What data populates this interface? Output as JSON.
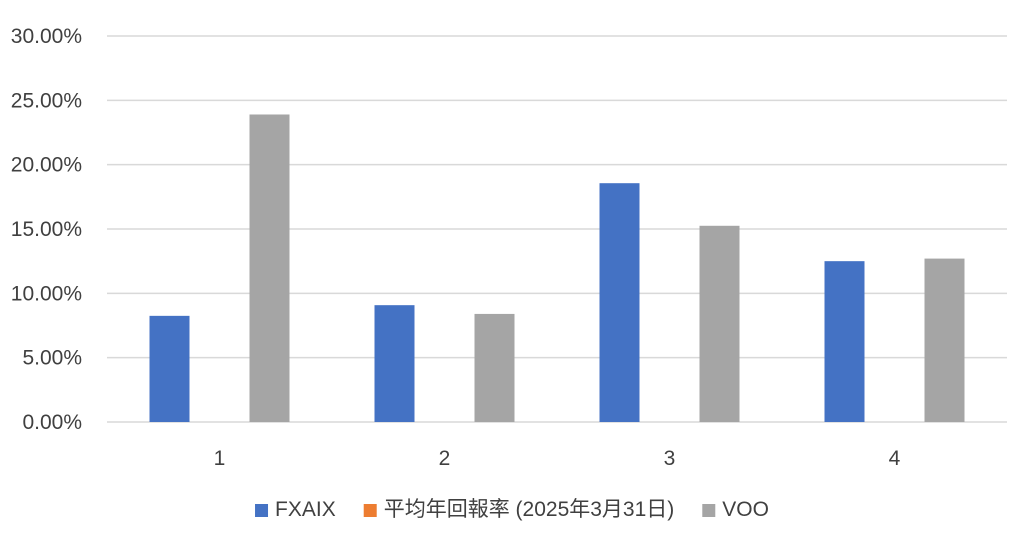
{
  "chart_data": {
    "type": "bar",
    "categories": [
      "1",
      "2",
      "3",
      "4"
    ],
    "series": [
      {
        "name": "FXAIX",
        "color": "#4472C4",
        "values": [
          0.0825,
          0.0908,
          0.1856,
          0.125
        ]
      },
      {
        "name": "平均年回報率 (2025年3月31日)",
        "color": "#ED7D31",
        "values": [
          null,
          null,
          null,
          null
        ]
      },
      {
        "name": "VOO",
        "color": "#A5A5A5",
        "values": [
          0.239,
          0.084,
          0.1525,
          0.127
        ]
      }
    ],
    "y_ticks": [
      "0.00%",
      "5.00%",
      "10.00%",
      "15.00%",
      "20.00%",
      "25.00%",
      "30.00%"
    ],
    "ylim": [
      0,
      0.3
    ],
    "y_format": "percent",
    "grid": true,
    "gridline_color": "#D9D9D9",
    "legend_position": "bottom",
    "title": "",
    "xlabel": "",
    "ylabel": ""
  }
}
